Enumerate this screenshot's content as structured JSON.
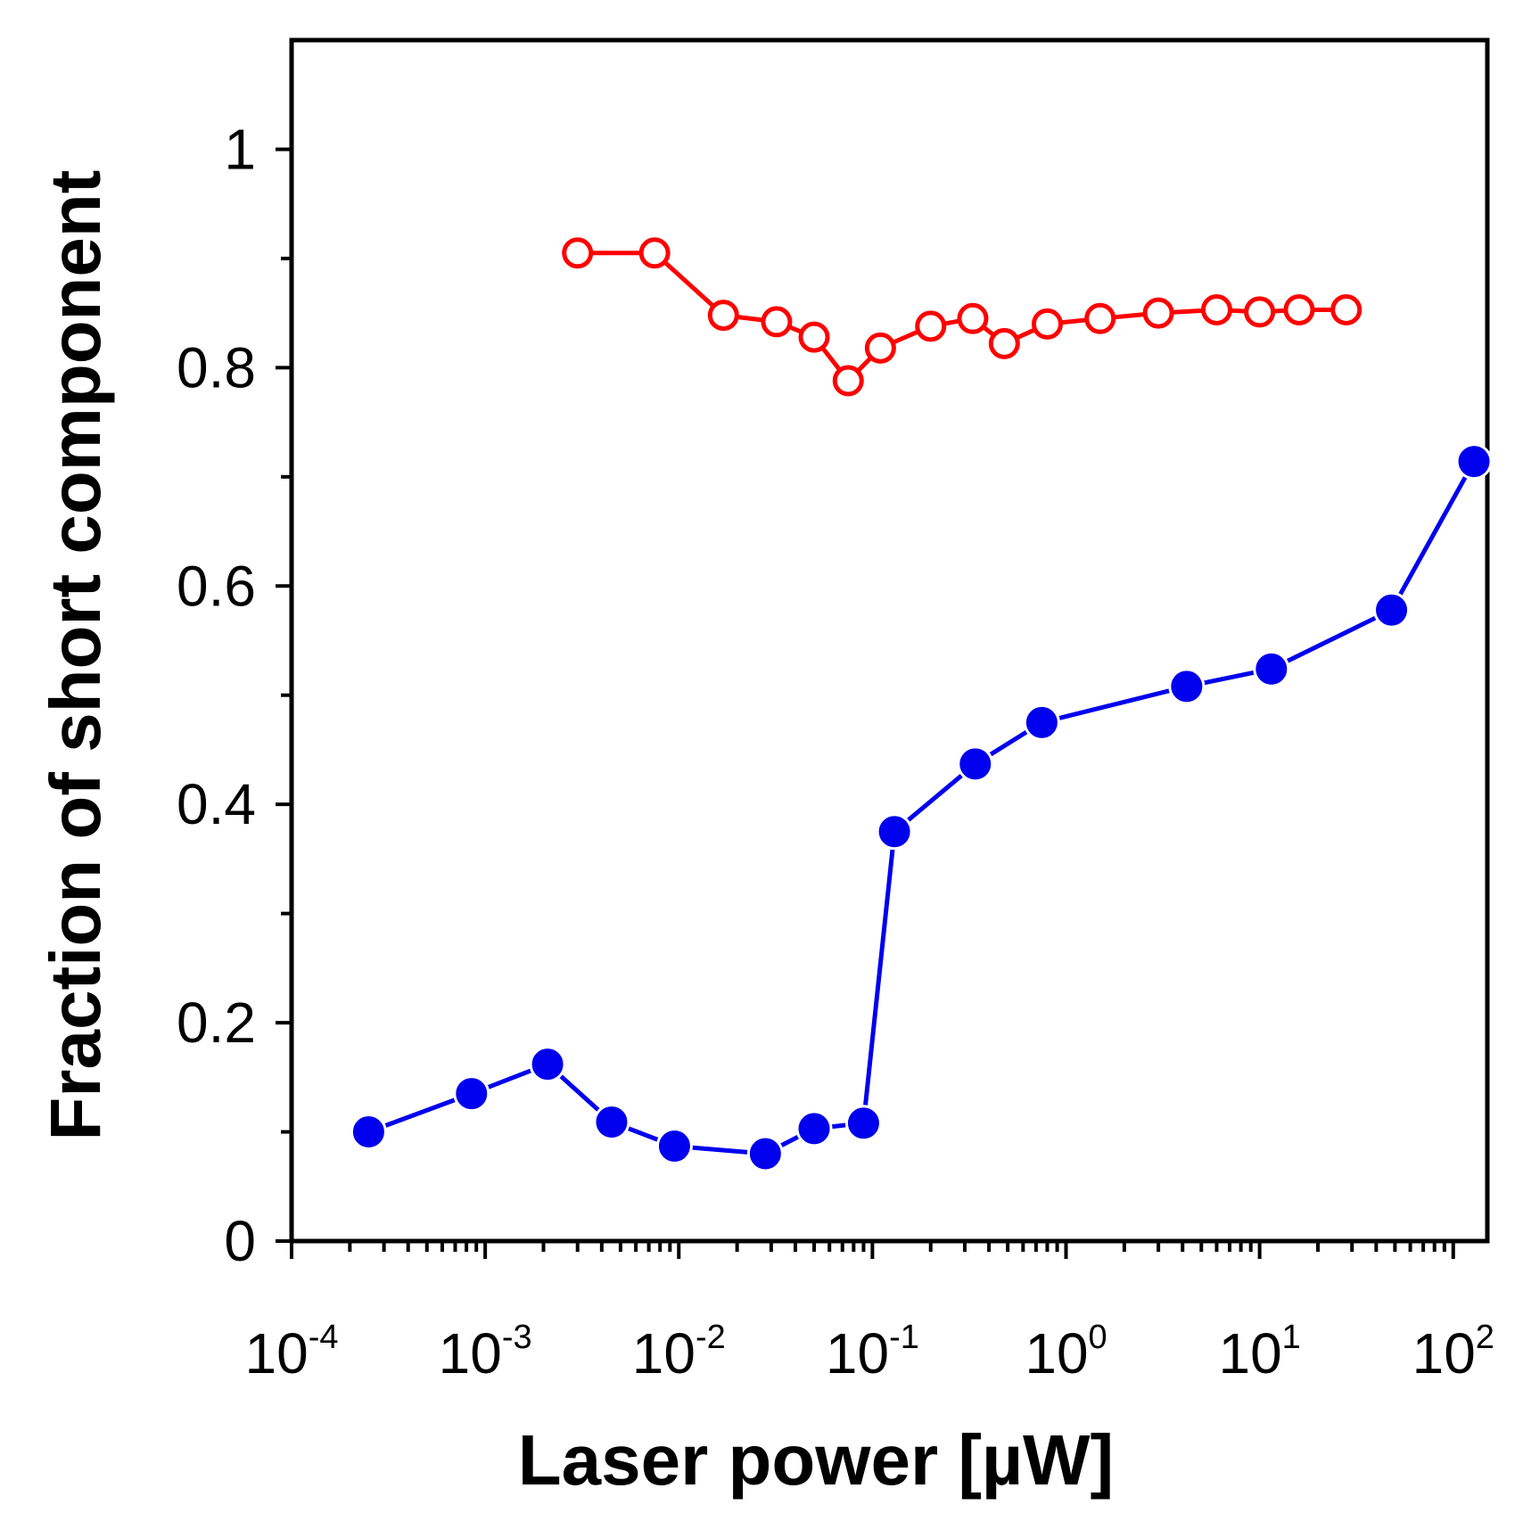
{
  "chart_data": {
    "type": "line",
    "title": "",
    "xlabel": "Laser power [µW]",
    "ylabel": "Fraction of short component",
    "xscale": "log",
    "xlim": [
      0.0001,
      150
    ],
    "ylim": [
      0,
      1.1
    ],
    "x_ticks": [
      {
        "value": 0.0001,
        "base": "10",
        "exp": "-4"
      },
      {
        "value": 0.001,
        "base": "10",
        "exp": "-3"
      },
      {
        "value": 0.01,
        "base": "10",
        "exp": "-2"
      },
      {
        "value": 0.1,
        "base": "10",
        "exp": "-1"
      },
      {
        "value": 1,
        "base": "10",
        "exp": "0"
      },
      {
        "value": 10,
        "base": "10",
        "exp": "1"
      },
      {
        "value": 100,
        "base": "10",
        "exp": "2"
      }
    ],
    "y_ticks": [
      {
        "value": 0,
        "label": "0"
      },
      {
        "value": 0.2,
        "label": "0.2"
      },
      {
        "value": 0.4,
        "label": "0.4"
      },
      {
        "value": 0.6,
        "label": "0.6"
      },
      {
        "value": 0.8,
        "label": "0.8"
      },
      {
        "value": 1.0,
        "label": "1"
      }
    ],
    "y_minor_ticks": [
      0.1,
      0.3,
      0.5,
      0.7,
      0.9
    ],
    "grid": false,
    "series": [
      {
        "name": "red-open-circles",
        "color": "#ff0000",
        "marker": "open-circle",
        "x": [
          0.003,
          0.0075,
          0.017,
          0.032,
          0.05,
          0.075,
          0.11,
          0.2,
          0.33,
          0.48,
          0.8,
          1.5,
          3,
          6,
          10,
          16,
          28
        ],
        "y": [
          0.905,
          0.905,
          0.848,
          0.842,
          0.828,
          0.788,
          0.818,
          0.838,
          0.845,
          0.822,
          0.84,
          0.845,
          0.85,
          0.853,
          0.851,
          0.853,
          0.853
        ]
      },
      {
        "name": "blue-filled-circles",
        "color": "#0000ee",
        "marker": "filled-circle",
        "x": [
          0.00025,
          0.00085,
          0.0021,
          0.0045,
          0.0095,
          0.028,
          0.05,
          0.09,
          0.13,
          0.34,
          0.75,
          4.2,
          11.5,
          48,
          128
        ],
        "y": [
          0.1,
          0.135,
          0.162,
          0.109,
          0.087,
          0.08,
          0.103,
          0.108,
          0.375,
          0.437,
          0.475,
          0.508,
          0.524,
          0.578,
          0.714
        ]
      }
    ]
  }
}
